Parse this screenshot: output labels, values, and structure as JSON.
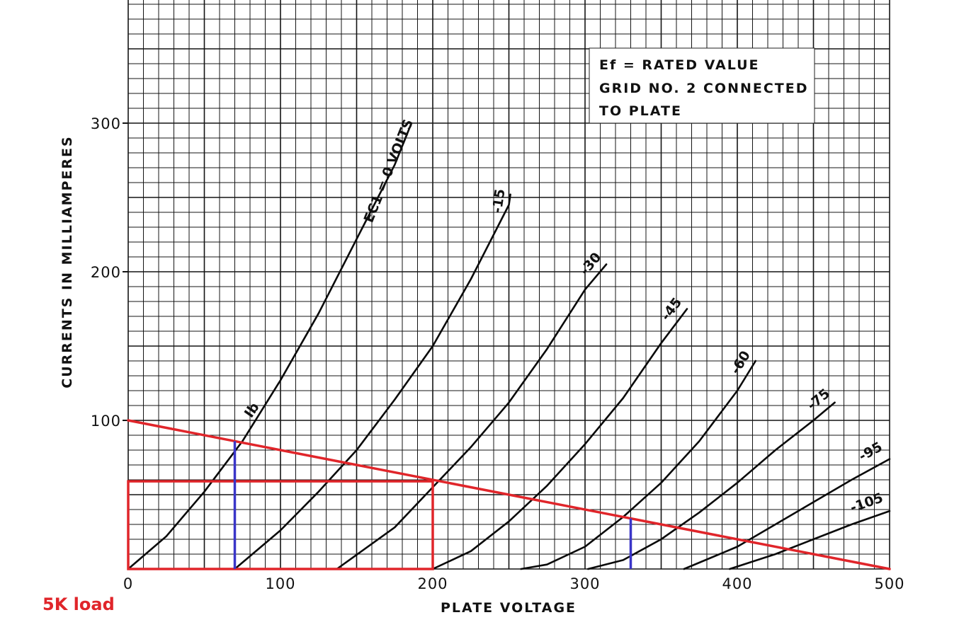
{
  "chart_data": {
    "type": "line",
    "xlabel": "PLATE VOLTAGE",
    "ylabel": "CURRENTS IN MILLIAMPERES",
    "xlim": [
      0,
      500
    ],
    "ylim": [
      0,
      380
    ],
    "x_ticks": [
      "0",
      "100",
      "200",
      "300",
      "400",
      "500"
    ],
    "y_ticks": [
      "100",
      "200",
      "300"
    ],
    "grid": true,
    "note_lines": [
      "Ef = RATED VALUE",
      "GRID NO. 2 CONNECTED",
      "TO PLATE"
    ],
    "series": [
      {
        "name": "Ec1 = 0 VOLTS",
        "label": "EC1 = 0 VOLTS",
        "points": [
          [
            0,
            0
          ],
          [
            25,
            22
          ],
          [
            50,
            52
          ],
          [
            75,
            86
          ],
          [
            100,
            127
          ],
          [
            125,
            172
          ],
          [
            150,
            222
          ],
          [
            175,
            272
          ],
          [
            186,
            300
          ]
        ]
      },
      {
        "name": "-15",
        "label": "-15",
        "points": [
          [
            70,
            0
          ],
          [
            100,
            26
          ],
          [
            125,
            52
          ],
          [
            150,
            80
          ],
          [
            175,
            114
          ],
          [
            200,
            150
          ],
          [
            225,
            195
          ],
          [
            250,
            245
          ],
          [
            251,
            252
          ]
        ]
      },
      {
        "name": "-30",
        "label": "-30",
        "points": [
          [
            137,
            0
          ],
          [
            175,
            28
          ],
          [
            200,
            55
          ],
          [
            225,
            82
          ],
          [
            250,
            112
          ],
          [
            275,
            148
          ],
          [
            300,
            188
          ],
          [
            314,
            205
          ]
        ]
      },
      {
        "name": "-45",
        "label": "-45",
        "points": [
          [
            200,
            0
          ],
          [
            225,
            12
          ],
          [
            250,
            32
          ],
          [
            275,
            56
          ],
          [
            300,
            84
          ],
          [
            325,
            115
          ],
          [
            350,
            152
          ],
          [
            367,
            175
          ]
        ]
      },
      {
        "name": "-60",
        "label": "-60",
        "points": [
          [
            258,
            0
          ],
          [
            275,
            3
          ],
          [
            300,
            15
          ],
          [
            325,
            35
          ],
          [
            350,
            58
          ],
          [
            375,
            86
          ],
          [
            400,
            120
          ],
          [
            412,
            140
          ]
        ]
      },
      {
        "name": "-75",
        "label": "-75",
        "points": [
          [
            302,
            0
          ],
          [
            325,
            6
          ],
          [
            350,
            20
          ],
          [
            375,
            38
          ],
          [
            400,
            58
          ],
          [
            425,
            80
          ],
          [
            450,
            100
          ],
          [
            464,
            112
          ]
        ]
      },
      {
        "name": "-95",
        "label": "-95",
        "points": [
          [
            365,
            0
          ],
          [
            400,
            15
          ],
          [
            425,
            30
          ],
          [
            450,
            45
          ],
          [
            475,
            60
          ],
          [
            500,
            74
          ]
        ]
      },
      {
        "name": "-105",
        "label": "-105",
        "points": [
          [
            395,
            0
          ],
          [
            425,
            10
          ],
          [
            450,
            20
          ],
          [
            475,
            30
          ],
          [
            500,
            39
          ]
        ]
      }
    ],
    "curve_annotation": "Ib",
    "load_line": {
      "label": "5K load",
      "points": [
        [
          0,
          100
        ],
        [
          500,
          0
        ]
      ]
    },
    "operating_box": {
      "x": [
        0,
        200
      ],
      "y": [
        0,
        59
      ]
    },
    "markers": [
      {
        "x": 70,
        "y_top": 86
      },
      {
        "x": 330,
        "y_top": 34
      }
    ],
    "colors": {
      "grid": "#141414",
      "curve": "#0a0a0a",
      "load_line": "#e0252a",
      "marker": "#3a35c8",
      "box": "#e0252a"
    }
  }
}
